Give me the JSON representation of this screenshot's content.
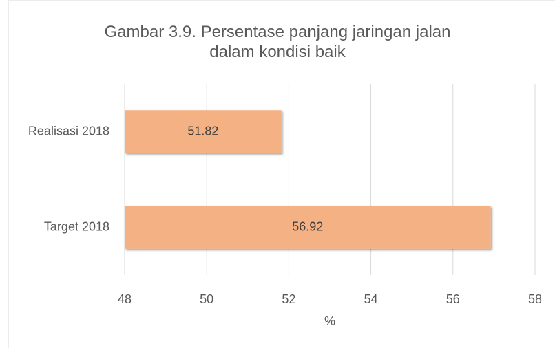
{
  "chart_data": {
    "type": "barh",
    "title": "Gambar 3.9. Persentase panjang jaringan jalan dalam kondisi baik",
    "categories": [
      "Realisasi 2018",
      "Target 2018"
    ],
    "values": [
      51.82,
      56.92
    ],
    "color": "#f4b183",
    "xlabel": "%",
    "xlim": [
      48,
      58
    ],
    "xticks": [
      48,
      50,
      52,
      54,
      56,
      58
    ],
    "grid": true
  }
}
